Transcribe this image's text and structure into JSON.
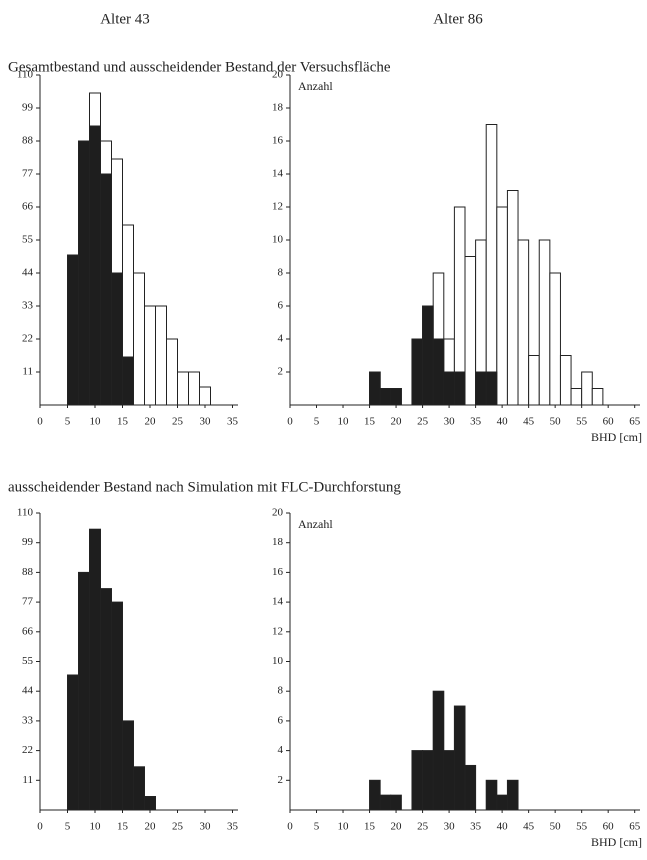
{
  "column_titles": [
    "Alter 43",
    "Alter 86"
  ],
  "section_titles": [
    "Gesamtbestand und ausscheidender Bestand der Versuchsfläche",
    "ausscheidender Bestand nach Simulation mit FLC-Durchforstung"
  ],
  "chart_data": [
    {
      "type": "histogram",
      "bins": [
        5,
        7,
        9,
        11,
        13,
        15,
        17,
        19,
        21,
        23,
        25,
        27,
        29,
        31
      ],
      "series": [
        {
          "color": "#ffffff",
          "values": [
            50,
            88,
            104,
            88,
            82,
            60,
            44,
            33,
            33,
            22,
            11,
            11,
            6
          ]
        },
        {
          "color": "#1e1e1e",
          "values": [
            50,
            88,
            93,
            77,
            44,
            16,
            0,
            0,
            0,
            0,
            0,
            0,
            0
          ]
        }
      ],
      "xlim": [
        0,
        36
      ],
      "xticks": [
        0,
        5,
        10,
        15,
        20,
        25,
        30,
        35
      ],
      "ylim": [
        0,
        110
      ],
      "yticks": [
        11,
        22,
        33,
        44,
        55,
        66,
        77,
        88,
        99,
        110
      ]
    },
    {
      "type": "histogram",
      "ylabel": "Anzahl",
      "xlabel": "BHD [cm]",
      "bins": [
        15,
        17,
        19,
        21,
        23,
        25,
        27,
        29,
        31,
        33,
        35,
        37,
        39,
        41,
        43,
        45,
        47,
        49,
        51,
        53,
        55,
        57,
        59
      ],
      "series": [
        {
          "color": "#ffffff",
          "values": [
            2,
            1,
            1,
            0,
            4,
            6,
            8,
            4,
            12,
            9,
            10,
            17,
            12,
            13,
            10,
            3,
            10,
            8,
            3,
            1,
            2,
            1
          ]
        },
        {
          "color": "#1e1e1e",
          "values": [
            2,
            1,
            1,
            0,
            4,
            6,
            4,
            2,
            2,
            0,
            2,
            2,
            0,
            0,
            0,
            0,
            0,
            0,
            0,
            0,
            0,
            0
          ]
        }
      ],
      "xlim": [
        0,
        66
      ],
      "xticks": [
        0,
        5,
        10,
        15,
        20,
        25,
        30,
        35,
        40,
        45,
        50,
        55,
        60,
        65
      ],
      "ylim": [
        0,
        20
      ],
      "yticks": [
        2,
        4,
        6,
        8,
        10,
        12,
        14,
        16,
        18,
        20
      ]
    },
    {
      "type": "histogram",
      "bins": [
        5,
        7,
        9,
        11,
        13,
        15,
        17,
        19,
        21
      ],
      "series": [
        {
          "color": "#1e1e1e",
          "values": [
            50,
            88,
            104,
            82,
            77,
            33,
            16,
            5
          ]
        }
      ],
      "xlim": [
        0,
        36
      ],
      "xticks": [
        0,
        5,
        10,
        15,
        20,
        25,
        30,
        35
      ],
      "ylim": [
        0,
        110
      ],
      "yticks": [
        11,
        22,
        33,
        44,
        55,
        66,
        77,
        88,
        99,
        110
      ]
    },
    {
      "type": "histogram",
      "ylabel": "Anzahl",
      "xlabel": "BHD [cm]",
      "bins": [
        15,
        17,
        19,
        21,
        23,
        25,
        27,
        29,
        31,
        33,
        35,
        37,
        39,
        41,
        43
      ],
      "series": [
        {
          "color": "#1e1e1e",
          "values": [
            2,
            1,
            1,
            0,
            4,
            4,
            8,
            4,
            7,
            3,
            0,
            2,
            1,
            2
          ]
        }
      ],
      "xlim": [
        0,
        66
      ],
      "xticks": [
        0,
        5,
        10,
        15,
        20,
        25,
        30,
        35,
        40,
        45,
        50,
        55,
        60,
        65
      ],
      "ylim": [
        0,
        20
      ],
      "yticks": [
        2,
        4,
        6,
        8,
        10,
        12,
        14,
        16,
        18,
        20
      ]
    }
  ]
}
